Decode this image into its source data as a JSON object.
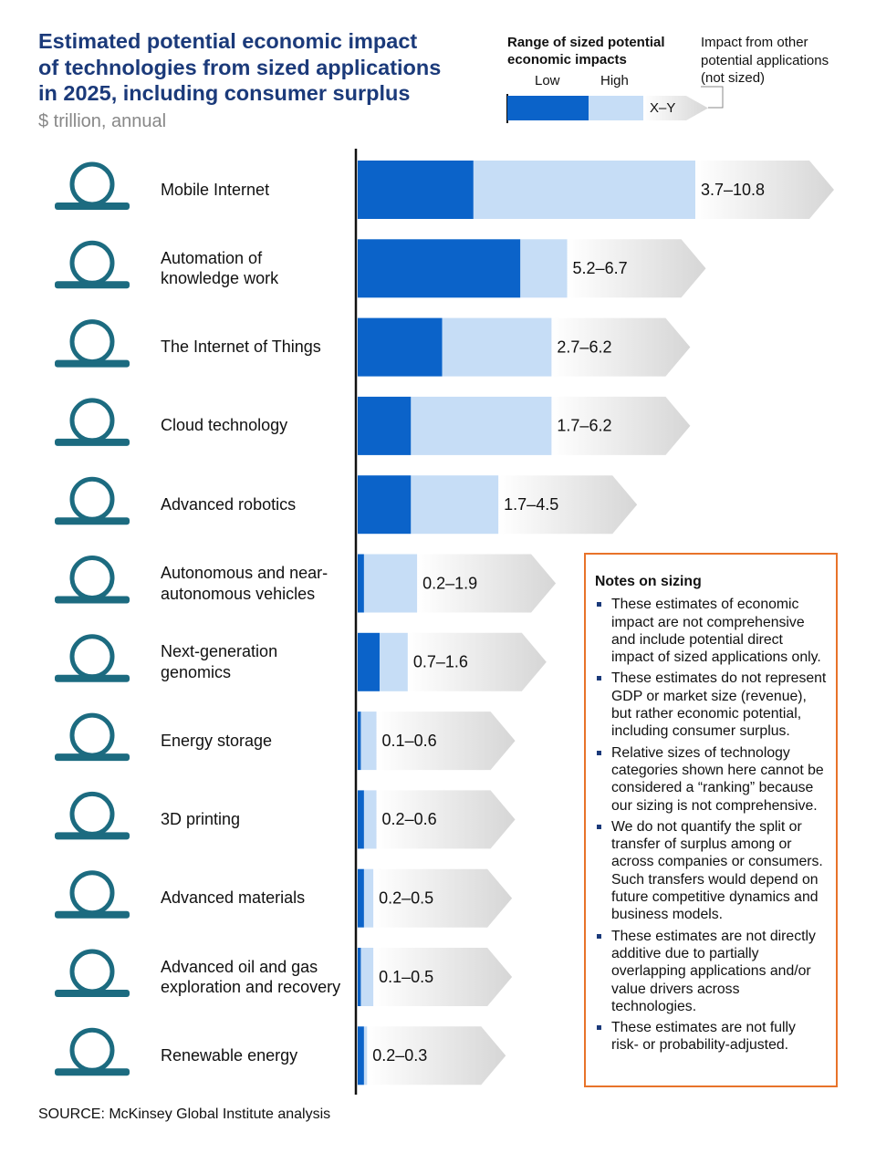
{
  "chart_data": {
    "type": "range-bar",
    "title": "Estimated potential economic impact\nof technologies from sized applications\nin 2025, including consumer surplus",
    "subtitle": "$ trillion, annual",
    "categories": [
      "Mobile Internet",
      "Automation of\nknowledge work",
      "The Internet of Things",
      "Cloud technology",
      "Advanced robotics",
      "Autonomous and near-\nautonomous vehicles",
      "Next-generation\ngenomics",
      "Energy storage",
      "3D printing",
      "Advanced materials",
      "Advanced oil and gas\nexploration and recovery",
      "Renewable energy"
    ],
    "series": [
      {
        "name": "Low",
        "color": "#0b63c9",
        "values": [
          3.7,
          5.2,
          2.7,
          1.7,
          1.7,
          0.2,
          0.7,
          0.1,
          0.2,
          0.2,
          0.1,
          0.2
        ]
      },
      {
        "name": "High",
        "color": "#c6ddf6",
        "values": [
          10.8,
          6.7,
          6.2,
          6.2,
          4.5,
          1.9,
          1.6,
          0.6,
          0.6,
          0.5,
          0.5,
          0.3
        ]
      }
    ],
    "value_labels": [
      "3.7–10.8",
      "5.2–6.7",
      "2.7–6.2",
      "1.7–6.2",
      "1.7–4.5",
      "0.2–1.9",
      "0.7–1.6",
      "0.1–0.6",
      "0.2–0.6",
      "0.2–0.5",
      "0.1–0.5",
      "0.2–0.3"
    ],
    "legend": {
      "title": "Range of sized potential\neconomic impacts",
      "sample_label": "X–Y",
      "note": "Impact from other\npotential applications\n(not sized)"
    },
    "source": "SOURCE: McKinsey Global Institute analysis",
    "notes": {
      "title": "Notes on sizing",
      "items": [
        "These estimates of economic impact are not comprehensive and include potential direct impact of sized applications only.",
        "These estimates do not represent GDP or market size (revenue), but rather economic potential, including consumer surplus.",
        "Relative sizes of technology categories shown here cannot be considered a “ranking” because our sizing is not comprehensive.",
        "We do not quantify the split or transfer of surplus among or across companies or consumers. Such transfers would depend on future competitive dynamics and business models.",
        "These estimates are not directly additive due to partially overlapping applications and/or value drivers across technologies.",
        "These estimates are not fully risk- or probability-adjusted."
      ]
    }
  }
}
